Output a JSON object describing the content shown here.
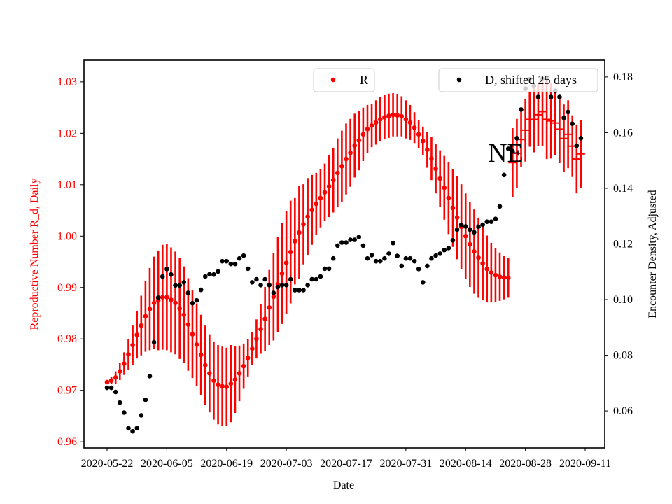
{
  "chart_data": {
    "type": "scatter",
    "xlabel": "Date",
    "ylabel_left": "Reproductive Number R_d, Daily",
    "ylabel_right": "Encounter Density, Adjusted",
    "annotation": "NE",
    "grid": false,
    "x_ticks": [
      "2020-05-22",
      "2020-06-05",
      "2020-06-19",
      "2020-07-03",
      "2020-07-17",
      "2020-07-31",
      "2020-08-14",
      "2020-08-28",
      "2020-09-11"
    ],
    "y_left_ticks": [
      "0.96",
      "0.97",
      "0.98",
      "0.99",
      "1.00",
      "1.01",
      "1.02",
      "1.03"
    ],
    "y_right_ticks": [
      "0.06",
      "0.08",
      "0.10",
      "0.12",
      "0.14",
      "0.16",
      "0.18"
    ],
    "ylim_left": [
      0.9588,
      1.0342
    ],
    "ylim_right": [
      0.0467,
      0.186
    ],
    "colors": {
      "R": "#ff0000",
      "D": "#000000",
      "left_axis_text": "#ff0000"
    },
    "legends": [
      {
        "label": "R",
        "placement": "upper-center",
        "marker_color": "#ff0000"
      },
      {
        "label": "D, shifted 25 days",
        "placement": "upper-right",
        "marker_color": "#000000"
      }
    ],
    "x": [
      "2020-05-22",
      "2020-05-23",
      "2020-05-24",
      "2020-05-25",
      "2020-05-26",
      "2020-05-27",
      "2020-05-28",
      "2020-05-29",
      "2020-05-30",
      "2020-05-31",
      "2020-06-01",
      "2020-06-02",
      "2020-06-03",
      "2020-06-04",
      "2020-06-05",
      "2020-06-06",
      "2020-06-07",
      "2020-06-08",
      "2020-06-09",
      "2020-06-10",
      "2020-06-11",
      "2020-06-12",
      "2020-06-13",
      "2020-06-14",
      "2020-06-15",
      "2020-06-16",
      "2020-06-17",
      "2020-06-18",
      "2020-06-19",
      "2020-06-20",
      "2020-06-21",
      "2020-06-22",
      "2020-06-23",
      "2020-06-24",
      "2020-06-25",
      "2020-06-26",
      "2020-06-27",
      "2020-06-28",
      "2020-06-29",
      "2020-06-30",
      "2020-07-01",
      "2020-07-02",
      "2020-07-03",
      "2020-07-04",
      "2020-07-05",
      "2020-07-06",
      "2020-07-07",
      "2020-07-08",
      "2020-07-09",
      "2020-07-10",
      "2020-07-11",
      "2020-07-12",
      "2020-07-13",
      "2020-07-14",
      "2020-07-15",
      "2020-07-16",
      "2020-07-17",
      "2020-07-18",
      "2020-07-19",
      "2020-07-20",
      "2020-07-21",
      "2020-07-22",
      "2020-07-23",
      "2020-07-24",
      "2020-07-25",
      "2020-07-26",
      "2020-07-27",
      "2020-07-28",
      "2020-07-29",
      "2020-07-30",
      "2020-07-31",
      "2020-08-01",
      "2020-08-02",
      "2020-08-03",
      "2020-08-04",
      "2020-08-05",
      "2020-08-06",
      "2020-08-07",
      "2020-08-08",
      "2020-08-09",
      "2020-08-10",
      "2020-08-11",
      "2020-08-12",
      "2020-08-13",
      "2020-08-14",
      "2020-08-15",
      "2020-08-16",
      "2020-08-17",
      "2020-08-18",
      "2020-08-19",
      "2020-08-20",
      "2020-08-21",
      "2020-08-22",
      "2020-08-23",
      "2020-08-24",
      "2020-08-25",
      "2020-08-26",
      "2020-08-27",
      "2020-08-28",
      "2020-08-29",
      "2020-08-30",
      "2020-08-31",
      "2020-09-01",
      "2020-09-02",
      "2020-09-03",
      "2020-09-04",
      "2020-09-05",
      "2020-09-06",
      "2020-09-07",
      "2020-09-08",
      "2020-09-09",
      "2020-09-10"
    ],
    "series": [
      {
        "name": "R",
        "axis": "left",
        "marker": "circle",
        "color": "#ff0000",
        "values": [
          0.9716,
          0.9719,
          0.9725,
          0.9737,
          0.9752,
          0.977,
          0.9788,
          0.9808,
          0.9826,
          0.9844,
          0.9858,
          0.987,
          0.9875,
          0.9881,
          0.9881,
          0.9876,
          0.987,
          0.9859,
          0.9847,
          0.9828,
          0.9809,
          0.9789,
          0.9769,
          0.9749,
          0.9733,
          0.9719,
          0.9711,
          0.9708,
          0.9707,
          0.9713,
          0.9721,
          0.9733,
          0.9747,
          0.9763,
          0.9781,
          0.98,
          0.9819,
          0.9839,
          0.9861,
          0.9882,
          0.9906,
          0.9927,
          0.9948,
          0.9969,
          0.999,
          1.0007,
          1.0023,
          1.0038,
          1.0051,
          1.0063,
          1.0074,
          1.0085,
          1.0097,
          1.0109,
          1.0123,
          1.0136,
          1.015,
          1.0162,
          1.0176,
          1.0186,
          1.0198,
          1.0208,
          1.0215,
          1.0221,
          1.0227,
          1.0231,
          1.0234,
          1.0236,
          1.0235,
          1.0233,
          1.0227,
          1.0221,
          1.0211,
          1.0198,
          1.0185,
          1.0168,
          1.0151,
          1.0131,
          1.0112,
          1.0094,
          1.0074,
          1.0055,
          1.0036,
          1.0018,
          1.0,
          0.9984,
          0.997,
          0.9958,
          0.9947,
          0.9936,
          0.9929,
          0.9924,
          0.9921,
          0.9919,
          0.9919,
          null,
          null,
          null,
          null,
          null,
          null,
          null,
          null,
          null,
          null,
          null,
          null,
          null,
          null,
          null,
          null,
          null
        ],
        "error": [
          0,
          0.0007,
          0.0012,
          0.0017,
          0.0022,
          0.003,
          0.0038,
          0.0046,
          0.0058,
          0.0069,
          0.008,
          0.009,
          0.0097,
          0.0102,
          0.0103,
          0.0102,
          0.01,
          0.0098,
          0.0094,
          0.009,
          0.0085,
          0.008,
          0.0078,
          0.0077,
          0.0076,
          0.0076,
          0.0077,
          0.0077,
          0.0076,
          0.0075,
          0.0065,
          0.0054,
          0.0044,
          0.0036,
          0.0032,
          0.0038,
          0.0048,
          0.0062,
          0.0073,
          0.0085,
          0.0093,
          0.0098,
          0.01,
          0.01,
          0.0084,
          0.009,
          0.0078,
          0.0075,
          0.0068,
          0.006,
          0.0057,
          0.0056,
          0.006,
          0.0063,
          0.0067,
          0.0069,
          0.0069,
          0.0066,
          0.0062,
          0.0058,
          0.0052,
          0.0047,
          0.0042,
          0.0043,
          0.0043,
          0.0043,
          0.0043,
          0.0042,
          0.0041,
          0.0039,
          0.0037,
          0.0034,
          0.003,
          0.0027,
          0.0028,
          0.0035,
          0.0042,
          0.0048,
          0.0055,
          0.0062,
          0.007,
          0.0076,
          0.0081,
          0.0083,
          0.0083,
          0.0083,
          0.0082,
          0.0078,
          0.0072,
          0.0065,
          0.0058,
          0.0052,
          0.0047,
          0.0042,
          0.0039,
          null,
          null,
          null,
          null,
          null,
          null,
          null,
          null,
          null,
          null,
          null,
          null,
          null,
          null,
          null,
          null,
          null
        ]
      },
      {
        "axis": "left",
        "marker": "hline",
        "color": "#ff0000",
        "values": [
          null,
          null,
          null,
          null,
          null,
          null,
          null,
          null,
          null,
          null,
          null,
          null,
          null,
          null,
          null,
          null,
          null,
          null,
          null,
          null,
          null,
          null,
          null,
          null,
          null,
          null,
          null,
          null,
          null,
          null,
          null,
          null,
          null,
          null,
          null,
          null,
          null,
          null,
          null,
          null,
          null,
          null,
          null,
          null,
          null,
          null,
          null,
          null,
          null,
          null,
          null,
          null,
          null,
          null,
          null,
          null,
          null,
          null,
          null,
          null,
          null,
          null,
          null,
          null,
          null,
          null,
          null,
          null,
          null,
          null,
          null,
          null,
          null,
          null,
          null,
          null,
          null,
          null,
          null,
          null,
          null,
          null,
          null,
          null,
          null,
          null,
          null,
          null,
          null,
          null,
          null,
          null,
          null,
          null,
          null,
          1.0143,
          1.0161,
          1.0188,
          1.0206,
          1.0227,
          1.0227,
          1.0236,
          1.0242,
          1.0227,
          1.0224,
          1.022,
          1.0208,
          1.019,
          1.0198,
          1.0175,
          1.015,
          1.016
        ],
        "error": [
          null,
          null,
          null,
          null,
          null,
          null,
          null,
          null,
          null,
          null,
          null,
          null,
          null,
          null,
          null,
          null,
          null,
          null,
          null,
          null,
          null,
          null,
          null,
          null,
          null,
          null,
          null,
          null,
          null,
          null,
          null,
          null,
          null,
          null,
          null,
          null,
          null,
          null,
          null,
          null,
          null,
          null,
          null,
          null,
          null,
          null,
          null,
          null,
          null,
          null,
          null,
          null,
          null,
          null,
          null,
          null,
          null,
          null,
          null,
          null,
          null,
          null,
          null,
          null,
          null,
          null,
          null,
          null,
          null,
          null,
          null,
          null,
          null,
          null,
          null,
          null,
          null,
          null,
          null,
          null,
          null,
          null,
          null,
          null,
          null,
          null,
          null,
          null,
          null,
          null,
          null,
          null,
          null,
          null,
          null,
          0.0067,
          0.0067,
          0.0054,
          0.0061,
          0.0053,
          0.0064,
          0.006,
          0.0066,
          0.0077,
          0.0073,
          0.0062,
          0.0066,
          0.0066,
          0.0066,
          0.006,
          0.0067,
          0.0066
        ]
      },
      {
        "name": "D, shifted 25 days",
        "axis": "right",
        "marker": "circle",
        "color": "#000000",
        "values": [
          0.0683,
          0.0683,
          0.0668,
          0.063,
          0.0594,
          0.0538,
          0.0527,
          0.0538,
          0.0584,
          0.064,
          0.0725,
          0.0847,
          0.1007,
          0.1083,
          0.111,
          0.109,
          0.1051,
          0.1051,
          0.1062,
          0.1024,
          0.0987,
          0.0997,
          0.1035,
          0.1083,
          0.1091,
          0.109,
          0.1101,
          0.1138,
          0.1138,
          0.1128,
          0.1128,
          0.1148,
          0.1158,
          0.1111,
          0.1062,
          0.1073,
          0.1052,
          0.1073,
          0.1052,
          0.1024,
          0.1045,
          0.1052,
          0.1052,
          0.1073,
          0.1034,
          0.1034,
          0.1034,
          0.1052,
          0.1073,
          0.1073,
          0.1083,
          0.1111,
          0.1111,
          0.1148,
          0.1194,
          0.1205,
          0.1205,
          0.1215,
          0.1215,
          0.1225,
          0.1194,
          0.1148,
          0.116,
          0.1138,
          0.1138,
          0.1148,
          0.1165,
          0.1203,
          0.1157,
          0.1121,
          0.1148,
          0.1148,
          0.1138,
          0.111,
          0.1062,
          0.1121,
          0.1148,
          0.1158,
          0.1165,
          0.1178,
          0.1185,
          0.1213,
          0.1251,
          0.1269,
          0.1263,
          0.1252,
          0.1242,
          0.1262,
          0.1269,
          0.128,
          0.128,
          0.129,
          0.1335,
          0.1448,
          0.1542,
          0.1533,
          0.158,
          0.1683,
          0.1758,
          0.1792,
          0.1767,
          0.1728,
          0.1793,
          0.1793,
          0.1728,
          0.175,
          0.1728,
          0.1653,
          0.1674,
          0.1632,
          0.1553,
          0.158
        ]
      }
    ]
  }
}
